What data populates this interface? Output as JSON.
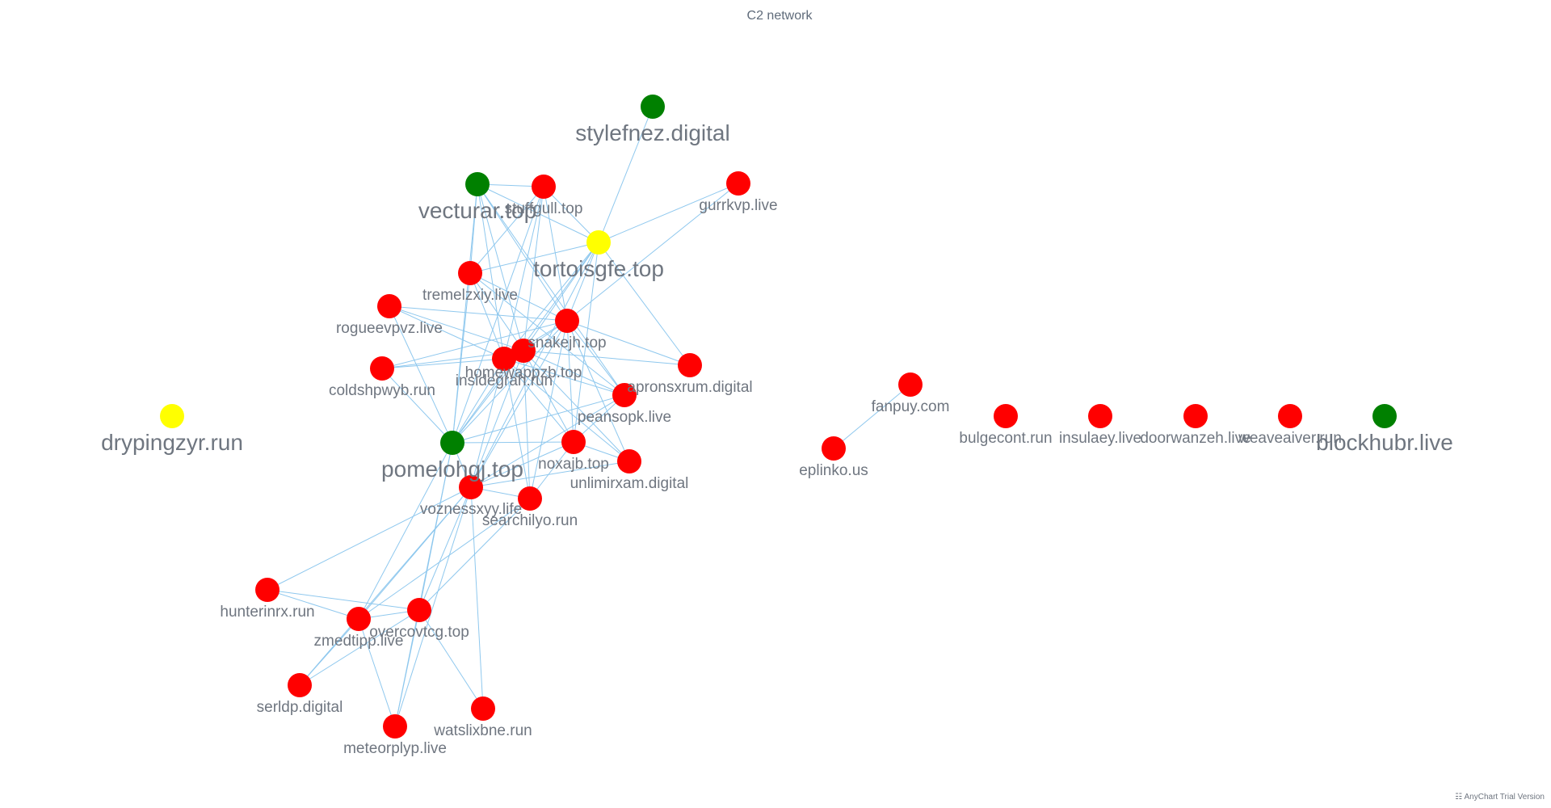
{
  "title": "C2 network",
  "credit": "AnyChart Trial Version",
  "colors": {
    "red": "#ff0000",
    "green": "#008000",
    "yellow": "#ffff00",
    "edge": "#8fc8ee"
  },
  "nodes": [
    {
      "id": "stylefnez.digital",
      "color": "green",
      "size": "large"
    },
    {
      "id": "vecturar.top",
      "color": "green",
      "size": "large"
    },
    {
      "id": "stuffgull.top",
      "color": "red",
      "size": "small"
    },
    {
      "id": "gurrkvp.live",
      "color": "red",
      "size": "small"
    },
    {
      "id": "tortoisgfe.top",
      "color": "yellow",
      "size": "large"
    },
    {
      "id": "tremelzxiy.live",
      "color": "red",
      "size": "small"
    },
    {
      "id": "rogueevpvz.live",
      "color": "red",
      "size": "small"
    },
    {
      "id": "snakejh.top",
      "color": "red",
      "size": "small"
    },
    {
      "id": "homewappzb.top",
      "color": "red",
      "size": "small"
    },
    {
      "id": "insidegrah.run",
      "color": "red",
      "size": "small"
    },
    {
      "id": "coldshpwyb.run",
      "color": "red",
      "size": "small"
    },
    {
      "id": "apronsxrum.digital",
      "color": "red",
      "size": "small"
    },
    {
      "id": "peansopk.live",
      "color": "red",
      "size": "small"
    },
    {
      "id": "drypingzyr.run",
      "color": "yellow",
      "size": "large"
    },
    {
      "id": "pomelohgj.top",
      "color": "green",
      "size": "large"
    },
    {
      "id": "noxajb.top",
      "color": "red",
      "size": "small"
    },
    {
      "id": "unlimirxam.digital",
      "color": "red",
      "size": "small"
    },
    {
      "id": "voznessxyy.life",
      "color": "red",
      "size": "small"
    },
    {
      "id": "searchilyo.run",
      "color": "red",
      "size": "small"
    },
    {
      "id": "hunterinrx.run",
      "color": "red",
      "size": "small"
    },
    {
      "id": "overcovtcg.top",
      "color": "red",
      "size": "small"
    },
    {
      "id": "zmedtipp.live",
      "color": "red",
      "size": "small"
    },
    {
      "id": "serldp.digital",
      "color": "red",
      "size": "small"
    },
    {
      "id": "meteorplyp.live",
      "color": "red",
      "size": "small"
    },
    {
      "id": "watslixbne.run",
      "color": "red",
      "size": "small"
    },
    {
      "id": "fanpuy.com",
      "color": "red",
      "size": "small"
    },
    {
      "id": "eplinko.us",
      "color": "red",
      "size": "small"
    },
    {
      "id": "bulgecont.run",
      "color": "red",
      "size": "small"
    },
    {
      "id": "insulaey.live",
      "color": "red",
      "size": "small"
    },
    {
      "id": "doorwanzeh.live",
      "color": "red",
      "size": "small"
    },
    {
      "id": "weaveaiver.run",
      "color": "red",
      "size": "small"
    },
    {
      "id": "blockhubr.live",
      "color": "green",
      "size": "large"
    }
  ],
  "edges": [
    [
      "stylefnez.digital",
      "tortoisgfe.top"
    ],
    [
      "vecturar.top",
      "stuffgull.top"
    ],
    [
      "vecturar.top",
      "tortoisgfe.top"
    ],
    [
      "vecturar.top",
      "tremelzxiy.live"
    ],
    [
      "vecturar.top",
      "snakejh.top"
    ],
    [
      "vecturar.top",
      "homewappzb.top"
    ],
    [
      "vecturar.top",
      "insidegrah.run"
    ],
    [
      "vecturar.top",
      "peansopk.live"
    ],
    [
      "vecturar.top",
      "pomelohgj.top"
    ],
    [
      "stuffgull.top",
      "tortoisgfe.top"
    ],
    [
      "stuffgull.top",
      "tremelzxiy.live"
    ],
    [
      "stuffgull.top",
      "snakejh.top"
    ],
    [
      "stuffgull.top",
      "homewappzb.top"
    ],
    [
      "stuffgull.top",
      "insidegrah.run"
    ],
    [
      "stuffgull.top",
      "pomelohgj.top"
    ],
    [
      "gurrkvp.live",
      "tortoisgfe.top"
    ],
    [
      "gurrkvp.live",
      "snakejh.top"
    ],
    [
      "tortoisgfe.top",
      "tremelzxiy.live"
    ],
    [
      "tortoisgfe.top",
      "snakejh.top"
    ],
    [
      "tortoisgfe.top",
      "homewappzb.top"
    ],
    [
      "tortoisgfe.top",
      "insidegrah.run"
    ],
    [
      "tortoisgfe.top",
      "apronsxrum.digital"
    ],
    [
      "tortoisgfe.top",
      "pomelohgj.top"
    ],
    [
      "tortoisgfe.top",
      "noxajb.top"
    ],
    [
      "tortoisgfe.top",
      "voznessxyy.life"
    ],
    [
      "tremelzxiy.live",
      "snakejh.top"
    ],
    [
      "tremelzxiy.live",
      "homewappzb.top"
    ],
    [
      "tremelzxiy.live",
      "insidegrah.run"
    ],
    [
      "tremelzxiy.live",
      "peansopk.live"
    ],
    [
      "tremelzxiy.live",
      "pomelohgj.top"
    ],
    [
      "rogueevpvz.live",
      "snakejh.top"
    ],
    [
      "rogueevpvz.live",
      "homewappzb.top"
    ],
    [
      "rogueevpvz.live",
      "insidegrah.run"
    ],
    [
      "rogueevpvz.live",
      "pomelohgj.top"
    ],
    [
      "snakejh.top",
      "homewappzb.top"
    ],
    [
      "snakejh.top",
      "insidegrah.run"
    ],
    [
      "snakejh.top",
      "coldshpwyb.run"
    ],
    [
      "snakejh.top",
      "apronsxrum.digital"
    ],
    [
      "snakejh.top",
      "peansopk.live"
    ],
    [
      "snakejh.top",
      "pomelohgj.top"
    ],
    [
      "snakejh.top",
      "noxajb.top"
    ],
    [
      "snakejh.top",
      "unlimirxam.digital"
    ],
    [
      "snakejh.top",
      "voznessxyy.life"
    ],
    [
      "snakejh.top",
      "searchilyo.run"
    ],
    [
      "homewappzb.top",
      "insidegrah.run"
    ],
    [
      "homewappzb.top",
      "coldshpwyb.run"
    ],
    [
      "homewappzb.top",
      "apronsxrum.digital"
    ],
    [
      "homewappzb.top",
      "peansopk.live"
    ],
    [
      "homewappzb.top",
      "pomelohgj.top"
    ],
    [
      "homewappzb.top",
      "noxajb.top"
    ],
    [
      "homewappzb.top",
      "unlimirxam.digital"
    ],
    [
      "homewappzb.top",
      "voznessxyy.life"
    ],
    [
      "homewappzb.top",
      "searchilyo.run"
    ],
    [
      "insidegrah.run",
      "coldshpwyb.run"
    ],
    [
      "insidegrah.run",
      "peansopk.live"
    ],
    [
      "insidegrah.run",
      "pomelohgj.top"
    ],
    [
      "insidegrah.run",
      "noxajb.top"
    ],
    [
      "insidegrah.run",
      "voznessxyy.life"
    ],
    [
      "insidegrah.run",
      "searchilyo.run"
    ],
    [
      "insidegrah.run",
      "unlimirxam.digital"
    ],
    [
      "coldshpwyb.run",
      "pomelohgj.top"
    ],
    [
      "peansopk.live",
      "pomelohgj.top"
    ],
    [
      "peansopk.live",
      "noxajb.top"
    ],
    [
      "peansopk.live",
      "voznessxyy.life"
    ],
    [
      "pomelohgj.top",
      "noxajb.top"
    ],
    [
      "pomelohgj.top",
      "voznessxyy.life"
    ],
    [
      "noxajb.top",
      "voznessxyy.life"
    ],
    [
      "noxajb.top",
      "searchilyo.run"
    ],
    [
      "noxajb.top",
      "unlimirxam.digital"
    ],
    [
      "voznessxyy.life",
      "searchilyo.run"
    ],
    [
      "voznessxyy.life",
      "unlimirxam.digital"
    ],
    [
      "voznessxyy.life",
      "hunterinrx.run"
    ],
    [
      "voznessxyy.life",
      "overcovtcg.top"
    ],
    [
      "voznessxyy.life",
      "zmedtipp.live"
    ],
    [
      "voznessxyy.life",
      "meteorplyp.live"
    ],
    [
      "voznessxyy.life",
      "watslixbne.run"
    ],
    [
      "voznessxyy.life",
      "serldp.digital"
    ],
    [
      "searchilyo.run",
      "zmedtipp.live"
    ],
    [
      "searchilyo.run",
      "overcovtcg.top"
    ],
    [
      "pomelohgj.top",
      "zmedtipp.live"
    ],
    [
      "pomelohgj.top",
      "overcovtcg.top"
    ],
    [
      "pomelohgj.top",
      "meteorplyp.live"
    ],
    [
      "hunterinrx.run",
      "zmedtipp.live"
    ],
    [
      "hunterinrx.run",
      "overcovtcg.top"
    ],
    [
      "zmedtipp.live",
      "overcovtcg.top"
    ],
    [
      "zmedtipp.live",
      "serldp.digital"
    ],
    [
      "zmedtipp.live",
      "meteorplyp.live"
    ],
    [
      "overcovtcg.top",
      "meteorplyp.live"
    ],
    [
      "overcovtcg.top",
      "watslixbne.run"
    ],
    [
      "overcovtcg.top",
      "serldp.digital"
    ],
    [
      "fanpuy.com",
      "eplinko.us"
    ]
  ]
}
